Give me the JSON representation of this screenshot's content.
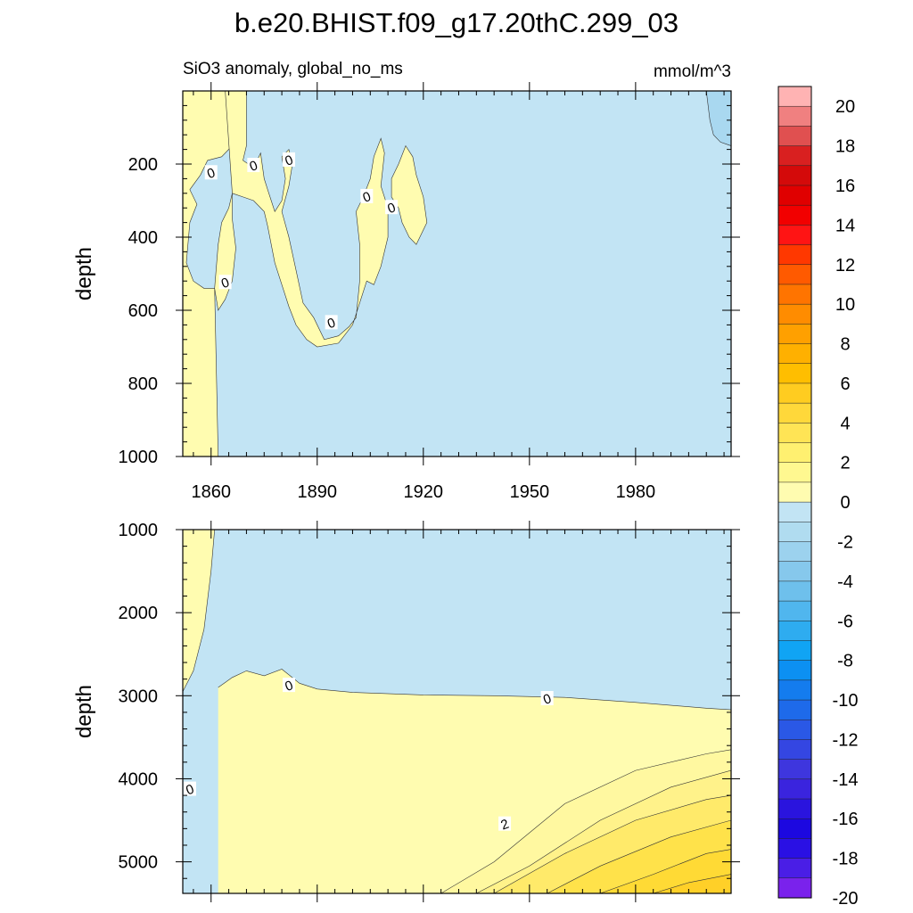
{
  "figure": {
    "title": "b.e20.BHIST.f09_g17.20thC.299_03",
    "subtitle_left": "SiO3 anomaly, global_no_ms",
    "subtitle_right": "mmol/m^3"
  },
  "chart_data": [
    {
      "type": "contour",
      "panel": "upper",
      "ylabel": "depth",
      "xlabel": "",
      "xlim": [
        1852,
        2007
      ],
      "ylim": [
        1000,
        0
      ],
      "x_ticks": [
        1860,
        1890,
        1920,
        1950,
        1980
      ],
      "y_ticks": [
        200,
        400,
        600,
        800,
        1000
      ],
      "contour_labels": [
        {
          "text": "0",
          "x": 1860,
          "y": 225
        },
        {
          "text": "0",
          "x": 1872,
          "y": 205
        },
        {
          "text": "0",
          "x": 1882,
          "y": 190
        },
        {
          "text": "0",
          "x": 1904,
          "y": 290
        },
        {
          "text": "0",
          "x": 1911,
          "y": 320
        },
        {
          "text": "0",
          "x": 1864,
          "y": 525
        },
        {
          "text": "0",
          "x": 1894,
          "y": 635
        }
      ],
      "regions": [
        {
          "fill": "#fffcb0",
          "level": "0 to 1",
          "outline": [
            [
              1852,
              0
            ],
            [
              1866,
              0
            ],
            [
              1865,
              60
            ],
            [
              1866,
              150
            ],
            [
              1863,
              180
            ],
            [
              1859,
              190
            ],
            [
              1857,
              230
            ],
            [
              1854,
              270
            ],
            [
              1856,
              310
            ],
            [
              1854,
              360
            ],
            [
              1853,
              470
            ],
            [
              1855,
              520
            ],
            [
              1858,
              540
            ],
            [
              1861,
              540
            ],
            [
              1862,
              1000
            ],
            [
              1852,
              1000
            ]
          ]
        },
        {
          "fill": "#fffcb0",
          "level": "0 to 1",
          "outline": [
            [
              1864,
              0
            ],
            [
              1870,
              0
            ],
            [
              1870,
              150
            ],
            [
              1869,
              190
            ],
            [
              1872,
              210
            ],
            [
              1874,
              170
            ],
            [
              1875,
              240
            ],
            [
              1876,
              270
            ],
            [
              1877,
              300
            ],
            [
              1878,
              330
            ],
            [
              1880,
              300
            ],
            [
              1881,
              240
            ],
            [
              1880,
              180
            ],
            [
              1882,
              160
            ],
            [
              1883,
              200
            ],
            [
              1882,
              260
            ],
            [
              1880,
              330
            ],
            [
              1882,
              400
            ],
            [
              1884,
              490
            ],
            [
              1886,
              580
            ],
            [
              1889,
              620
            ],
            [
              1892,
              680
            ],
            [
              1896,
              670
            ],
            [
              1899,
              645
            ],
            [
              1901,
              620
            ],
            [
              1902,
              520
            ],
            [
              1902,
              420
            ],
            [
              1901,
              330
            ],
            [
              1903,
              290
            ],
            [
              1905,
              240
            ],
            [
              1906,
              180
            ],
            [
              1908,
              130
            ],
            [
              1909,
              170
            ],
            [
              1908,
              260
            ],
            [
              1910,
              320
            ],
            [
              1910,
              400
            ],
            [
              1908,
              480
            ],
            [
              1906,
              530
            ],
            [
              1904,
              520
            ],
            [
              1902,
              580
            ],
            [
              1900,
              640
            ],
            [
              1896,
              690
            ],
            [
              1890,
              700
            ],
            [
              1887,
              680
            ],
            [
              1884,
              640
            ],
            [
              1882,
              590
            ],
            [
              1880,
              530
            ],
            [
              1878,
              470
            ],
            [
              1877,
              420
            ],
            [
              1876,
              370
            ],
            [
              1875,
              330
            ],
            [
              1872,
              300
            ],
            [
              1869,
              290
            ],
            [
              1866,
              280
            ],
            [
              1865,
              320
            ],
            [
              1863,
              360
            ],
            [
              1862,
              420
            ],
            [
              1861,
              540
            ],
            [
              1862,
              600
            ],
            [
              1864,
              570
            ],
            [
              1866,
              520
            ],
            [
              1867,
              430
            ],
            [
              1866,
              350
            ],
            [
              1866,
              280
            ]
          ]
        },
        {
          "fill": "#fffcb0",
          "level": "0 to 1",
          "outline": [
            [
              1911,
              240
            ],
            [
              1913,
              200
            ],
            [
              1915,
              150
            ],
            [
              1917,
              180
            ],
            [
              1918,
              230
            ],
            [
              1920,
              290
            ],
            [
              1921,
              360
            ],
            [
              1918,
              420
            ],
            [
              1916,
              400
            ],
            [
              1914,
              360
            ],
            [
              1913,
              320
            ],
            [
              1911,
              290
            ]
          ]
        }
      ],
      "background_fill": "#c2e4f4",
      "negative_patches": [
        {
          "fill": "#a9d8f0",
          "outline": [
            [
              2000,
              0
            ],
            [
              2007,
              0
            ],
            [
              2007,
              150
            ],
            [
              2004,
              140
            ],
            [
              2002,
              120
            ],
            [
              2001,
              80
            ]
          ]
        }
      ]
    },
    {
      "type": "contour",
      "panel": "lower",
      "ylabel": "depth",
      "xlabel": "",
      "xlim": [
        1852,
        2007
      ],
      "ylim": [
        5380,
        1000
      ],
      "x_ticks": [
        1860,
        1890,
        1920,
        1950,
        1980
      ],
      "y_ticks": [
        1000,
        2000,
        3000,
        4000,
        5000
      ],
      "contour_labels": [
        {
          "text": "0",
          "x": 1882,
          "y": 2880
        },
        {
          "text": "0",
          "x": 1955,
          "y": 3040
        },
        {
          "text": "0",
          "x": 1854,
          "y": 4130
        },
        {
          "text": "2",
          "x": 1943,
          "y": 4550
        }
      ],
      "levels": [
        {
          "value": 0,
          "fill": "#fffcb0",
          "boundary_x": [
            1862,
            1866,
            1870,
            1875,
            1880,
            1885,
            1890,
            1900,
            1920,
            1940,
            1960,
            1980,
            2000,
            2007
          ],
          "boundary_y": [
            2900,
            2780,
            2700,
            2760,
            2680,
            2850,
            2920,
            2960,
            2990,
            3000,
            3020,
            3080,
            3150,
            3170
          ]
        },
        {
          "value": 0.5,
          "fill": "#fff8a0",
          "boundary_x": [
            1925,
            1940,
            1960,
            1980,
            2000,
            2007
          ],
          "boundary_y": [
            5380,
            5000,
            4300,
            3900,
            3700,
            3650
          ]
        },
        {
          "value": 1,
          "fill": "#fff28a",
          "boundary_x": [
            1935,
            1950,
            1970,
            1990,
            2007
          ],
          "boundary_y": [
            5380,
            5050,
            4500,
            4100,
            3900
          ]
        },
        {
          "value": 1.5,
          "fill": "#ffea6a",
          "boundary_x": [
            1940,
            1960,
            1980,
            2000,
            2007
          ],
          "boundary_y": [
            5380,
            4900,
            4500,
            4250,
            4200
          ]
        },
        {
          "value": 2,
          "fill": "#ffe24a",
          "boundary_x": [
            1955,
            1970,
            1990,
            2007
          ],
          "boundary_y": [
            5380,
            5050,
            4700,
            4500
          ]
        },
        {
          "value": 2.5,
          "fill": "#ffda35",
          "boundary_x": [
            1970,
            1985,
            2000,
            2007
          ],
          "boundary_y": [
            5380,
            5150,
            4900,
            4850
          ]
        },
        {
          "value": 3,
          "fill": "#ffd028",
          "boundary_x": [
            1985,
            1995,
            2007
          ],
          "boundary_y": [
            5380,
            5250,
            5150
          ]
        }
      ],
      "background_fill": "#c2e4f4",
      "left_strip": {
        "fill": "#fffcb0",
        "outline": [
          [
            1852,
            1000
          ],
          [
            1861,
            1000
          ],
          [
            1860,
            1500
          ],
          [
            1858,
            2200
          ],
          [
            1855,
            2700
          ],
          [
            1852,
            2950
          ]
        ]
      }
    }
  ],
  "colorbar": {
    "labels": [
      "20",
      "18",
      "16",
      "14",
      "12",
      "10",
      "8",
      "6",
      "4",
      "2",
      "0",
      "-2",
      "-4",
      "-6",
      "-8",
      "-10",
      "-12",
      "-14",
      "-16",
      "-18",
      "-20"
    ],
    "colors": [
      "#ffb3b3",
      "#f08080",
      "#e05050",
      "#d92020",
      "#d40a0a",
      "#e00000",
      "#f20000",
      "#ff1414",
      "#ff3800",
      "#ff5a00",
      "#ff7400",
      "#ff8c00",
      "#ffa000",
      "#ffb000",
      "#ffbe00",
      "#ffcc20",
      "#ffd83a",
      "#ffe455",
      "#fff070",
      "#fff890",
      "#fffcb0",
      "#c2e4f4",
      "#b0dcf0",
      "#9cd2ee",
      "#86c8ec",
      "#6ec0ec",
      "#50b6ee",
      "#2eacf0",
      "#10a4f4",
      "#0c90f2",
      "#147cee",
      "#1e6aea",
      "#2a58e6",
      "#3446e2",
      "#3e36de",
      "#3a24de",
      "#2a14de",
      "#1c08e0",
      "#2a10e4",
      "#4a1ee6",
      "#7a22ec"
    ]
  }
}
